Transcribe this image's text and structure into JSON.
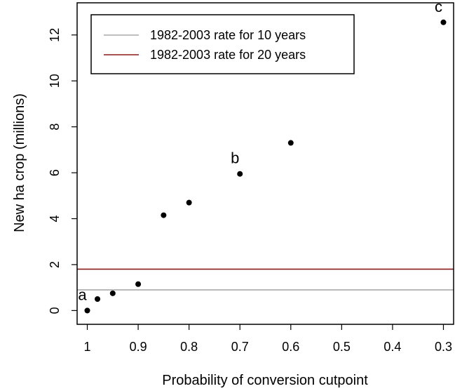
{
  "chart_data": {
    "type": "scatter",
    "xlabel": "Probability of conversion cutpoint",
    "ylabel": "New ha crop (millions)",
    "x_reversed": true,
    "xlim": [
      1.02,
      0.28
    ],
    "ylim": [
      -0.6,
      13.4
    ],
    "xticks": [
      {
        "value": 1.0,
        "label": "1"
      },
      {
        "value": 0.9,
        "label": "0.9"
      },
      {
        "value": 0.8,
        "label": "0.8"
      },
      {
        "value": 0.7,
        "label": "0.7"
      },
      {
        "value": 0.6,
        "label": "0.6"
      },
      {
        "value": 0.5,
        "label": "0.5"
      },
      {
        "value": 0.4,
        "label": "0.4"
      },
      {
        "value": 0.3,
        "label": "0.3"
      }
    ],
    "yticks": [
      {
        "value": 0,
        "label": "0"
      },
      {
        "value": 2,
        "label": "2"
      },
      {
        "value": 4,
        "label": "4"
      },
      {
        "value": 6,
        "label": "6"
      },
      {
        "value": 8,
        "label": "8"
      },
      {
        "value": 10,
        "label": "10"
      },
      {
        "value": 12,
        "label": "12"
      }
    ],
    "points": [
      {
        "x": 1.0,
        "y": 0.0
      },
      {
        "x": 0.98,
        "y": 0.5
      },
      {
        "x": 0.95,
        "y": 0.75
      },
      {
        "x": 0.9,
        "y": 1.15
      },
      {
        "x": 0.85,
        "y": 4.15
      },
      {
        "x": 0.8,
        "y": 4.7
      },
      {
        "x": 0.7,
        "y": 5.95
      },
      {
        "x": 0.6,
        "y": 7.3
      },
      {
        "x": 0.3,
        "y": 12.55
      }
    ],
    "point_labels": [
      {
        "text": "a",
        "x": 1.0,
        "y": 0.0
      },
      {
        "text": "b",
        "x": 0.7,
        "y": 5.95
      },
      {
        "text": "c",
        "x": 0.3,
        "y": 12.55
      }
    ],
    "reference_lines": [
      {
        "label": "1982-2003 rate for 10 years",
        "y": 0.9,
        "color": "#aaaaaa"
      },
      {
        "label": "1982-2003 rate for 20 years",
        "y": 1.8,
        "color": "#8b1a1a"
      }
    ],
    "legend_position": "top-left",
    "grid": false,
    "point_color": "#000000"
  }
}
